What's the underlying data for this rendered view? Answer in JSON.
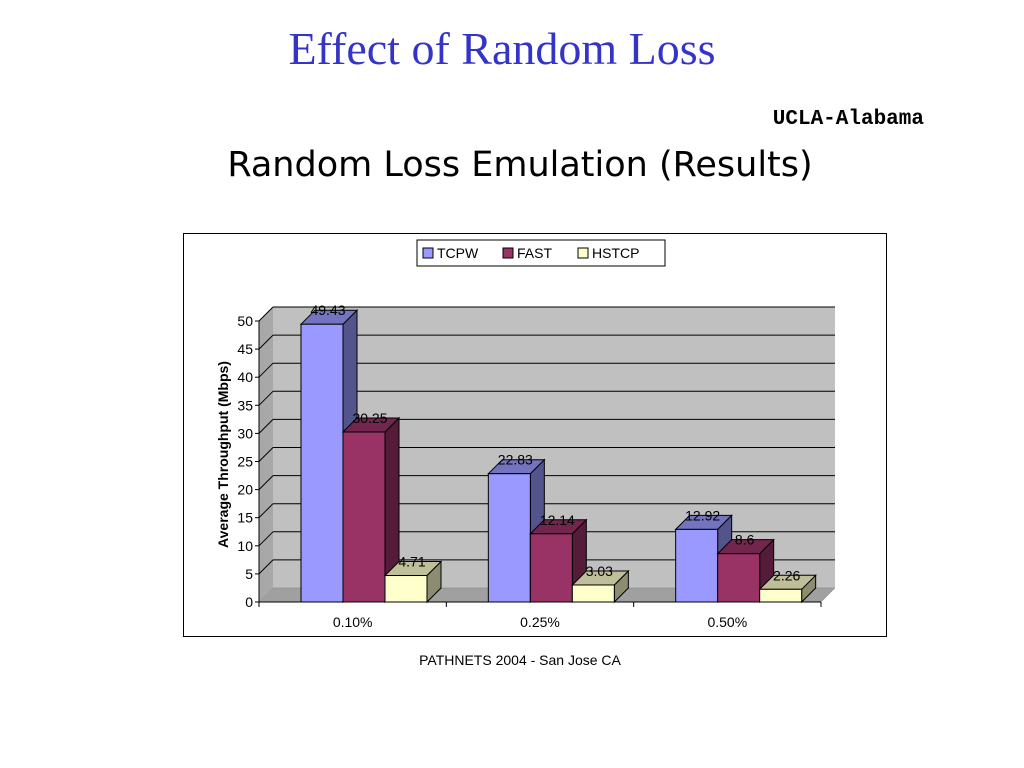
{
  "slide": {
    "title": "Effect of Random Loss",
    "org": "UCLA-Alabama",
    "subtitle": "Random Loss Emulation (Results)",
    "footer": "PATHNETS 2004 - San Jose CA"
  },
  "chart_data": {
    "type": "bar",
    "style": "3d-clustered",
    "title": "",
    "xlabel": "",
    "ylabel": "Average Throughput (Mbps)",
    "categories": [
      "0.10%",
      "0.25%",
      "0.50%"
    ],
    "series": [
      {
        "name": "TCPW",
        "values": [
          49.43,
          22.83,
          12.92
        ],
        "color": "#9999ff"
      },
      {
        "name": "FAST",
        "values": [
          30.25,
          12.14,
          8.6
        ],
        "color": "#993366"
      },
      {
        "name": "HSTCP",
        "values": [
          4.71,
          3.03,
          2.26
        ],
        "color": "#ffffcc"
      }
    ],
    "ylim": [
      0,
      50
    ],
    "yticks": [
      0,
      5,
      10,
      15,
      20,
      25,
      30,
      35,
      40,
      45,
      50
    ],
    "grid": true,
    "legend": "top-center",
    "plot_background": "#c0c0c0"
  }
}
